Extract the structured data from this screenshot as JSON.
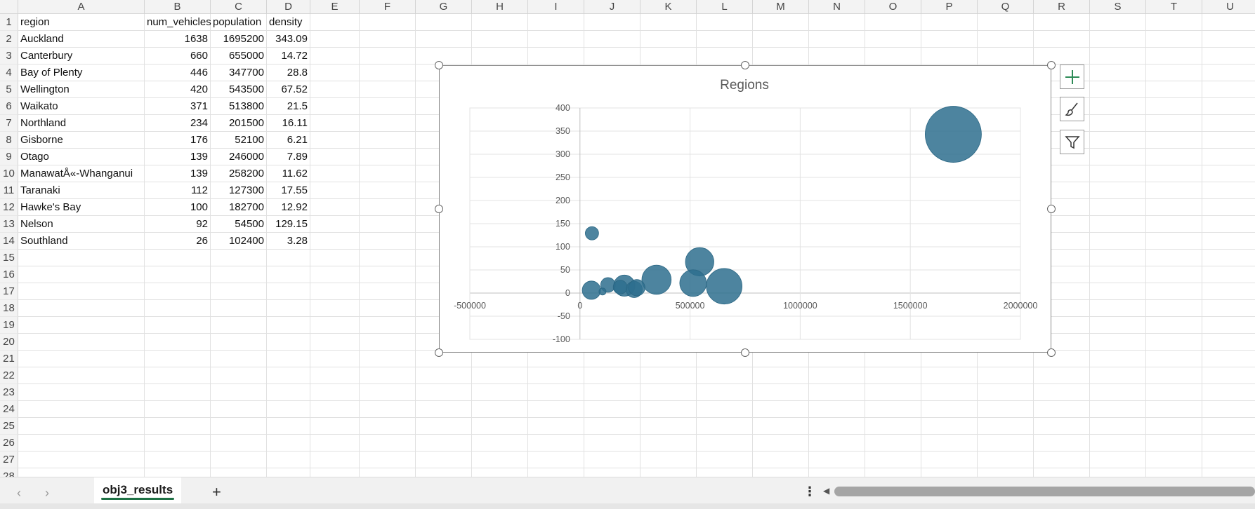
{
  "columns": [
    "A",
    "B",
    "C",
    "D",
    "E",
    "F",
    "G",
    "H",
    "I",
    "J",
    "K",
    "L",
    "M",
    "N",
    "O",
    "P",
    "Q",
    "R",
    "S",
    "T",
    "U"
  ],
  "rows": [
    "1",
    "2",
    "3",
    "4",
    "5",
    "6",
    "7",
    "8",
    "9",
    "10",
    "11",
    "12",
    "13",
    "14",
    "15",
    "16",
    "17",
    "18",
    "19",
    "20",
    "21",
    "22",
    "23",
    "24",
    "25",
    "26",
    "27",
    "28"
  ],
  "table": {
    "headers": [
      "region",
      "num_vehicles",
      "population",
      "density"
    ],
    "records": [
      [
        "Auckland",
        "1638",
        "1695200",
        "343.09"
      ],
      [
        "Canterbury",
        "660",
        "655000",
        "14.72"
      ],
      [
        "Bay of Plenty",
        "446",
        "347700",
        "28.8"
      ],
      [
        "Wellington",
        "420",
        "543500",
        "67.52"
      ],
      [
        "Waikato",
        "371",
        "513800",
        "21.5"
      ],
      [
        "Northland",
        "234",
        "201500",
        "16.11"
      ],
      [
        "Gisborne",
        "176",
        "52100",
        "6.21"
      ],
      [
        "Otago",
        "139",
        "246000",
        "7.89"
      ],
      [
        "ManawatÅ«-Whanganui",
        "139",
        "258200",
        "11.62"
      ],
      [
        "Taranaki",
        "112",
        "127300",
        "17.55"
      ],
      [
        "Hawke's Bay",
        "100",
        "182700",
        "12.92"
      ],
      [
        "Nelson",
        "92",
        "54500",
        "129.15"
      ],
      [
        "Southland",
        "26",
        "102400",
        "3.28"
      ]
    ]
  },
  "chart_data": {
    "type": "bubble",
    "title": "Regions",
    "xlim": [
      -500000,
      2000000
    ],
    "ylim": [
      -100,
      400
    ],
    "x_ticks": [
      "-500000",
      "0",
      "500000",
      "1000000",
      "1500000",
      "2000000"
    ],
    "y_ticks": [
      "400",
      "350",
      "300",
      "250",
      "200",
      "150",
      "100",
      "50",
      "0",
      "-50",
      "-100"
    ],
    "color": "#2e6f8e",
    "points": [
      {
        "x": 1695200,
        "y": 343.09,
        "size": 1638
      },
      {
        "x": 655000,
        "y": 14.72,
        "size": 660
      },
      {
        "x": 347700,
        "y": 28.8,
        "size": 446
      },
      {
        "x": 543500,
        "y": 67.52,
        "size": 420
      },
      {
        "x": 513800,
        "y": 21.5,
        "size": 371
      },
      {
        "x": 201500,
        "y": 16.11,
        "size": 234
      },
      {
        "x": 52100,
        "y": 6.21,
        "size": 176
      },
      {
        "x": 246000,
        "y": 7.89,
        "size": 139
      },
      {
        "x": 258200,
        "y": 11.62,
        "size": 139
      },
      {
        "x": 127300,
        "y": 17.55,
        "size": 112
      },
      {
        "x": 182700,
        "y": 12.92,
        "size": 100
      },
      {
        "x": 54500,
        "y": 129.15,
        "size": 92
      },
      {
        "x": 102400,
        "y": 3.28,
        "size": 26
      }
    ]
  },
  "chart_buttons": [
    "plus-icon",
    "brush-icon",
    "filter-icon"
  ],
  "tabs": {
    "active": "obj3_results",
    "add_label": "+",
    "more_label": "⋮"
  }
}
